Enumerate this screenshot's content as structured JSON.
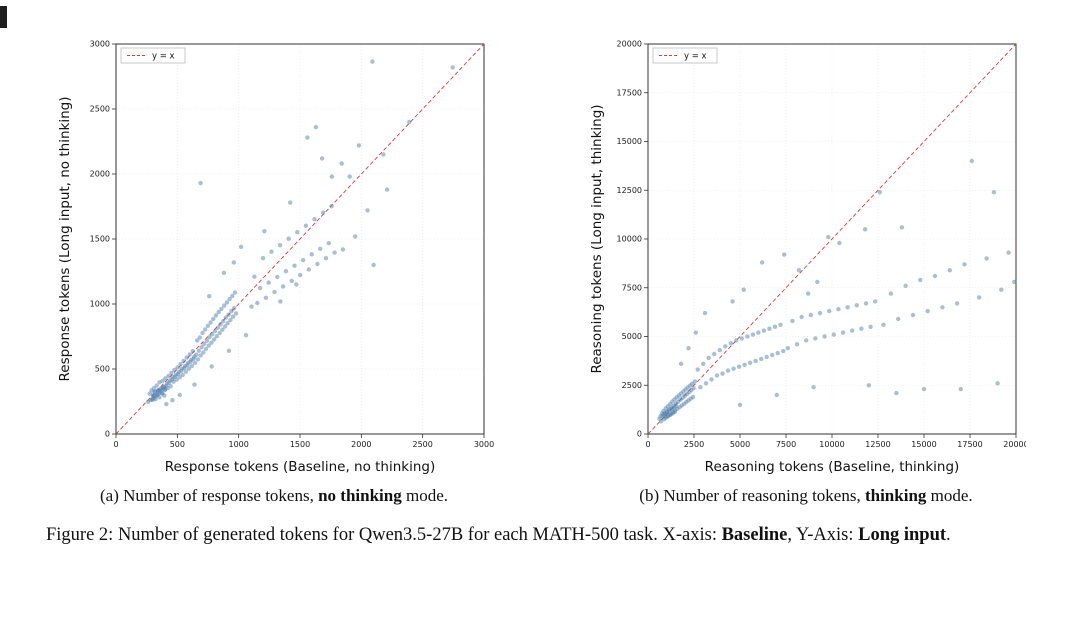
{
  "figure": {
    "panels": [
      {
        "id": "a",
        "caption": {
          "prefix": "(a) Number of response tokens, ",
          "bold": "no thinking",
          "suffix": " mode."
        }
      },
      {
        "id": "b",
        "caption": {
          "prefix": "(b) Number of reasoning tokens, ",
          "bold": "thinking",
          "suffix": " mode."
        }
      }
    ],
    "caption": {
      "part1": "Figure 2: Number of generated tokens for Qwen3.5-27B for each MATH-500 task. X-axis: ",
      "bold1": "Baseline",
      "part2": ", Y-Axis: ",
      "bold2": "Long input",
      "part3": "."
    }
  },
  "chart_data": [
    {
      "type": "scatter",
      "title": "",
      "xlabel": "Response tokens (Baseline, no thinking)",
      "ylabel": "Response tokens (Long input, no thinking)",
      "xlim": [
        0,
        3000
      ],
      "ylim": [
        0,
        3000
      ],
      "xticks": [
        0,
        500,
        1000,
        1500,
        2000,
        2500,
        3000
      ],
      "yticks": [
        0,
        500,
        1000,
        1500,
        2000,
        2500,
        3000
      ],
      "legend_label": "y = x",
      "legend_position": "upper left",
      "reference_line": "y=x",
      "line_color": "#dd3a3a",
      "marker_color": "#4f81ae",
      "grid": true,
      "points": [
        [
          262,
          248
        ],
        [
          275,
          310
        ],
        [
          281,
          262
        ],
        [
          289,
          335
        ],
        [
          295,
          270
        ],
        [
          302,
          298
        ],
        [
          308,
          352
        ],
        [
          312,
          280
        ],
        [
          318,
          326
        ],
        [
          324,
          291
        ],
        [
          331,
          372
        ],
        [
          336,
          305
        ],
        [
          342,
          338
        ],
        [
          349,
          312
        ],
        [
          355,
          398
        ],
        [
          361,
          329
        ],
        [
          366,
          342
        ],
        [
          373,
          315
        ],
        [
          379,
          408
        ],
        [
          384,
          351
        ],
        [
          391,
          362
        ],
        [
          397,
          338
        ],
        [
          402,
          428
        ],
        [
          409,
          371
        ],
        [
          415,
          388
        ],
        [
          421,
          352
        ],
        [
          427,
          446
        ],
        [
          433,
          395
        ],
        [
          439,
          412
        ],
        [
          446,
          368
        ],
        [
          452,
          470
        ],
        [
          458,
          421
        ],
        [
          463,
          438
        ],
        [
          469,
          402
        ],
        [
          475,
          492
        ],
        [
          482,
          441
        ],
        [
          488,
          456
        ],
        [
          494,
          418
        ],
        [
          501,
          512
        ],
        [
          507,
          462
        ],
        [
          513,
          478
        ],
        [
          519,
          436
        ],
        [
          526,
          538
        ],
        [
          532,
          486
        ],
        [
          538,
          502
        ],
        [
          544,
          455
        ],
        [
          551,
          562
        ],
        [
          557,
          508
        ],
        [
          563,
          524
        ],
        [
          569,
          479
        ],
        [
          576,
          588
        ],
        [
          582,
          531
        ],
        [
          588,
          548
        ],
        [
          594,
          502
        ],
        [
          601,
          612
        ],
        [
          607,
          556
        ],
        [
          613,
          571
        ],
        [
          619,
          524
        ],
        [
          626,
          638
        ],
        [
          632,
          579
        ],
        [
          638,
          595
        ],
        [
          644,
          548
        ],
        [
          298,
          262
        ],
        [
          306,
          291
        ],
        [
          314,
          322
        ],
        [
          322,
          268
        ],
        [
          338,
          301
        ],
        [
          346,
          332
        ],
        [
          354,
          282
        ],
        [
          362,
          348
        ],
        [
          378,
          312
        ],
        [
          386,
          362
        ],
        [
          394,
          295
        ],
        [
          402,
          342
        ],
        [
          655,
          610
        ],
        [
          662,
          720
        ],
        [
          668,
          575
        ],
        [
          675,
          640
        ],
        [
          683,
          742
        ],
        [
          690,
          605
        ],
        [
          698,
          668
        ],
        [
          705,
          778
        ],
        [
          712,
          628
        ],
        [
          719,
          692
        ],
        [
          727,
          805
        ],
        [
          734,
          655
        ],
        [
          741,
          718
        ],
        [
          749,
          832
        ],
        [
          756,
          680
        ],
        [
          763,
          745
        ],
        [
          771,
          858
        ],
        [
          778,
          702
        ],
        [
          785,
          768
        ],
        [
          793,
          885
        ],
        [
          800,
          728
        ],
        [
          808,
          792
        ],
        [
          815,
          912
        ],
        [
          822,
          752
        ],
        [
          830,
          818
        ],
        [
          837,
          938
        ],
        [
          845,
          778
        ],
        [
          852,
          842
        ],
        [
          859,
          962
        ],
        [
          867,
          802
        ],
        [
          874,
          868
        ],
        [
          882,
          988
        ],
        [
          889,
          828
        ],
        [
          896,
          895
        ],
        [
          904,
          1012
        ],
        [
          911,
          852
        ],
        [
          918,
          918
        ],
        [
          926,
          1038
        ],
        [
          933,
          878
        ],
        [
          941,
          945
        ],
        [
          948,
          1062
        ],
        [
          955,
          902
        ],
        [
          963,
          968
        ],
        [
          970,
          1088
        ],
        [
          978,
          928
        ],
        [
          1105,
          980
        ],
        [
          1128,
          1210
        ],
        [
          1152,
          1008
        ],
        [
          1175,
          1122
        ],
        [
          1198,
          1352
        ],
        [
          1222,
          1048
        ],
        [
          1245,
          1165
        ],
        [
          1268,
          1402
        ],
        [
          1292,
          1092
        ],
        [
          1315,
          1208
        ],
        [
          1338,
          1452
        ],
        [
          1362,
          1135
        ],
        [
          1385,
          1252
        ],
        [
          1408,
          1502
        ],
        [
          1432,
          1178
        ],
        [
          1455,
          1295
        ],
        [
          1478,
          1552
        ],
        [
          1502,
          1222
        ],
        [
          1525,
          1338
        ],
        [
          1548,
          1602
        ],
        [
          1572,
          1265
        ],
        [
          1595,
          1382
        ],
        [
          1618,
          1652
        ],
        [
          1642,
          1308
        ],
        [
          1665,
          1425
        ],
        [
          1688,
          1702
        ],
        [
          1712,
          1352
        ],
        [
          1735,
          1468
        ],
        [
          1758,
          1752
        ],
        [
          1782,
          1395
        ],
        [
          690,
          1930
        ],
        [
          1210,
          1560
        ],
        [
          1420,
          1780
        ],
        [
          1630,
          2360
        ],
        [
          1560,
          2280
        ],
        [
          1680,
          2120
        ],
        [
          1840,
          2080
        ],
        [
          1905,
          1980
        ],
        [
          2090,
          2865
        ],
        [
          2745,
          2820
        ],
        [
          2390,
          2400
        ],
        [
          2180,
          2150
        ],
        [
          2050,
          1720
        ],
        [
          2210,
          1880
        ],
        [
          1950,
          1520
        ],
        [
          2100,
          1300
        ],
        [
          1850,
          1420
        ],
        [
          1980,
          2220
        ],
        [
          1760,
          1980
        ],
        [
          1340,
          1020
        ],
        [
          1470,
          1150
        ],
        [
          880,
          1240
        ],
        [
          960,
          1320
        ],
        [
          1020,
          1440
        ],
        [
          760,
          1060
        ],
        [
          640,
          380
        ],
        [
          780,
          520
        ],
        [
          920,
          640
        ],
        [
          1060,
          760
        ],
        [
          520,
          300
        ],
        [
          460,
          260
        ],
        [
          410,
          230
        ]
      ]
    },
    {
      "type": "scatter",
      "title": "",
      "xlabel": "Reasoning tokens (Baseline, thinking)",
      "ylabel": "Reasoning tokens (Long input, thinking)",
      "xlim": [
        0,
        20000
      ],
      "ylim": [
        0,
        20000
      ],
      "xticks": [
        0,
        2500,
        5000,
        7500,
        10000,
        12500,
        15000,
        17500,
        20000
      ],
      "yticks": [
        0,
        2500,
        5000,
        7500,
        10000,
        12500,
        15000,
        17500,
        20000
      ],
      "legend_label": "y = x",
      "legend_position": "upper left",
      "reference_line": "y=x",
      "line_color": "#dd3a3a",
      "marker_color": "#4f81ae",
      "grid": true,
      "points": [
        [
          620,
          780
        ],
        [
          680,
          920
        ],
        [
          720,
          650
        ],
        [
          760,
          1050
        ],
        [
          800,
          880
        ],
        [
          840,
          1180
        ],
        [
          880,
          760
        ],
        [
          920,
          1020
        ],
        [
          960,
          1320
        ],
        [
          1000,
          890
        ],
        [
          1040,
          1150
        ],
        [
          1080,
          1420
        ],
        [
          1120,
          960
        ],
        [
          1160,
          1250
        ],
        [
          1200,
          1540
        ],
        [
          1240,
          1030
        ],
        [
          1280,
          1350
        ],
        [
          1320,
          1660
        ],
        [
          1360,
          1120
        ],
        [
          1400,
          1450
        ],
        [
          1440,
          1780
        ],
        [
          1480,
          1210
        ],
        [
          1520,
          1560
        ],
        [
          1560,
          1880
        ],
        [
          1600,
          1290
        ],
        [
          1640,
          1650
        ],
        [
          1680,
          1980
        ],
        [
          1720,
          1380
        ],
        [
          1760,
          1760
        ],
        [
          1800,
          2080
        ],
        [
          1840,
          1460
        ],
        [
          1880,
          1850
        ],
        [
          1920,
          2180
        ],
        [
          1960,
          1550
        ],
        [
          2000,
          1960
        ],
        [
          2040,
          2280
        ],
        [
          2080,
          1640
        ],
        [
          2120,
          2050
        ],
        [
          2160,
          2380
        ],
        [
          2200,
          1720
        ],
        [
          2240,
          2150
        ],
        [
          2280,
          2480
        ],
        [
          2320,
          1810
        ],
        [
          2360,
          2250
        ],
        [
          2400,
          2580
        ],
        [
          2440,
          1890
        ],
        [
          2480,
          2350
        ],
        [
          850,
          980
        ],
        [
          910,
          1060
        ],
        [
          970,
          840
        ],
        [
          1030,
          1120
        ],
        [
          1090,
          900
        ],
        [
          1150,
          1200
        ],
        [
          1210,
          980
        ],
        [
          1270,
          1280
        ],
        [
          1330,
          1050
        ],
        [
          1390,
          1350
        ],
        [
          1450,
          1130
        ],
        [
          1510,
          1430
        ],
        [
          2550,
          2700
        ],
        [
          2700,
          3300
        ],
        [
          2850,
          2400
        ],
        [
          3000,
          3600
        ],
        [
          3150,
          2600
        ],
        [
          3300,
          3900
        ],
        [
          3450,
          2800
        ],
        [
          3600,
          4100
        ],
        [
          3750,
          3000
        ],
        [
          3900,
          4300
        ],
        [
          4050,
          3100
        ],
        [
          4200,
          4500
        ],
        [
          4350,
          3250
        ],
        [
          4500,
          4650
        ],
        [
          4650,
          3350
        ],
        [
          4800,
          4800
        ],
        [
          4950,
          3450
        ],
        [
          5100,
          4900
        ],
        [
          5250,
          3550
        ],
        [
          5400,
          5000
        ],
        [
          5550,
          3650
        ],
        [
          5700,
          5100
        ],
        [
          5850,
          3750
        ],
        [
          6000,
          5200
        ],
        [
          6150,
          3850
        ],
        [
          6300,
          5300
        ],
        [
          6450,
          3950
        ],
        [
          6600,
          5400
        ],
        [
          6750,
          4050
        ],
        [
          6900,
          5500
        ],
        [
          7050,
          4150
        ],
        [
          7200,
          5600
        ],
        [
          7350,
          4250
        ],
        [
          7600,
          4400
        ],
        [
          7850,
          5800
        ],
        [
          8100,
          4600
        ],
        [
          8350,
          6000
        ],
        [
          8600,
          4800
        ],
        [
          8850,
          6100
        ],
        [
          9100,
          4900
        ],
        [
          9350,
          6200
        ],
        [
          9600,
          5000
        ],
        [
          9850,
          6300
        ],
        [
          10100,
          5100
        ],
        [
          10350,
          6400
        ],
        [
          10600,
          5200
        ],
        [
          10850,
          6500
        ],
        [
          11100,
          5300
        ],
        [
          11350,
          6600
        ],
        [
          11600,
          5400
        ],
        [
          11850,
          6700
        ],
        [
          12100,
          5500
        ],
        [
          12350,
          6800
        ],
        [
          12800,
          5600
        ],
        [
          13200,
          7200
        ],
        [
          13600,
          5900
        ],
        [
          14000,
          7600
        ],
        [
          14400,
          6100
        ],
        [
          14800,
          7900
        ],
        [
          15200,
          6300
        ],
        [
          15600,
          8100
        ],
        [
          16000,
          6500
        ],
        [
          16400,
          8400
        ],
        [
          16800,
          6700
        ],
        [
          17200,
          8700
        ],
        [
          17600,
          14000
        ],
        [
          18000,
          7000
        ],
        [
          18400,
          9000
        ],
        [
          18800,
          12400
        ],
        [
          19200,
          7400
        ],
        [
          19600,
          9300
        ],
        [
          19900,
          7800
        ],
        [
          2600,
          5200
        ],
        [
          3100,
          6200
        ],
        [
          1800,
          3600
        ],
        [
          2200,
          4400
        ],
        [
          9800,
          10100
        ],
        [
          10400,
          9800
        ],
        [
          8200,
          8400
        ],
        [
          5200,
          7400
        ],
        [
          4600,
          6800
        ],
        [
          6200,
          8800
        ],
        [
          7400,
          9200
        ],
        [
          11800,
          10500
        ],
        [
          12600,
          12400
        ],
        [
          13800,
          10600
        ],
        [
          9200,
          7800
        ],
        [
          8700,
          7200
        ],
        [
          5000,
          1500
        ],
        [
          7000,
          2000
        ],
        [
          9000,
          2400
        ],
        [
          12000,
          2500
        ],
        [
          15000,
          2300
        ],
        [
          17000,
          2300
        ],
        [
          19000,
          2600
        ],
        [
          13500,
          2100
        ]
      ]
    }
  ]
}
